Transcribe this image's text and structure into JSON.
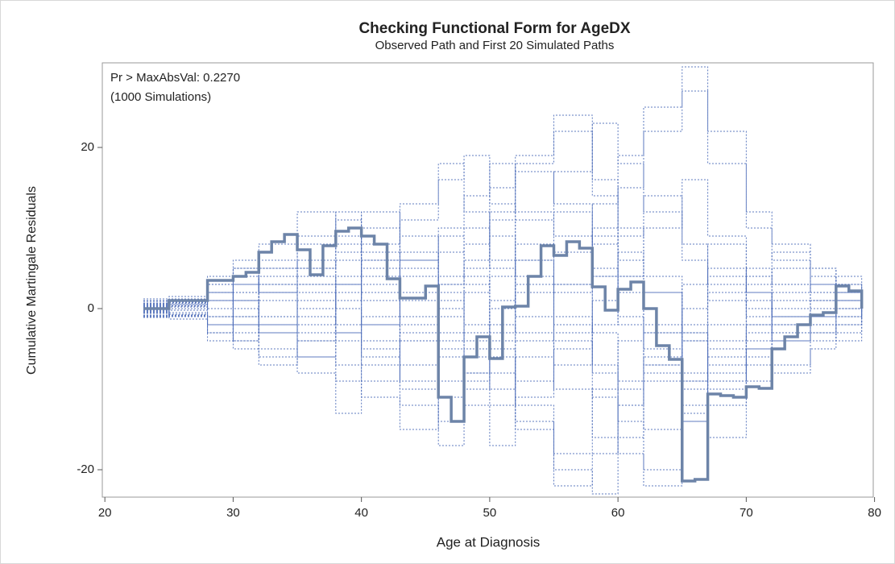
{
  "chart_data": {
    "type": "step",
    "title": "Checking Functional Form for AgeDX",
    "subtitle": "Observed Path and First 20 Simulated Paths",
    "xlabel": "Age at Diagnosis",
    "ylabel": "Cumulative Martingale Residuals",
    "annotations": [
      "Pr > MaxAbsVal: 0.2270",
      "(1000 Simulations)"
    ],
    "xlim": [
      19.8,
      79.9
    ],
    "ylim": [
      -23.4,
      30.5
    ],
    "xticks": [
      20,
      30,
      40,
      50,
      60,
      70,
      80
    ],
    "yticks": [
      -20,
      0,
      20
    ],
    "grid": false,
    "observed": {
      "color": "#6d84a8",
      "x": [
        23,
        25,
        28,
        30,
        31,
        32,
        33,
        34,
        35,
        36,
        37,
        38,
        39,
        40,
        41,
        42,
        43,
        45,
        46,
        47,
        48,
        49,
        50,
        51,
        52,
        53,
        54,
        55,
        56,
        57,
        58,
        59,
        60,
        61,
        62,
        63,
        64,
        65,
        66,
        67,
        68,
        69,
        70,
        71,
        72,
        73,
        74,
        75,
        76,
        77,
        78,
        79
      ],
      "values": [
        0,
        1,
        3.5,
        4,
        4.5,
        7,
        8.3,
        9.2,
        7.3,
        4.2,
        7.8,
        9.6,
        10,
        9,
        8,
        3.7,
        1.3,
        2.8,
        -11,
        -14,
        -6,
        -3.5,
        -6.2,
        0.2,
        0.3,
        4,
        7.8,
        6.6,
        8.3,
        7.5,
        2.7,
        -0.2,
        2.4,
        3.3,
        0,
        -4.6,
        -6.3,
        -21.4,
        -21.2,
        -10.6,
        -10.8,
        -11,
        -9.7,
        -9.9,
        -5,
        -3.5,
        -2,
        -0.8,
        -0.5,
        2.8,
        2.2,
        0
      ]
    },
    "simulated_color": "#4a6ab8",
    "simulated_x": [
      23,
      25,
      28,
      30,
      32,
      35,
      38,
      40,
      43,
      46,
      48,
      50,
      52,
      55,
      58,
      60,
      62,
      65,
      67,
      70,
      72,
      75,
      77,
      79
    ],
    "simulated": [
      [
        0.5,
        1,
        2,
        -1,
        3,
        5,
        8,
        12,
        6,
        10,
        14,
        18,
        12,
        9,
        4,
        -2,
        -8,
        -12,
        -6,
        -3,
        2,
        4,
        1,
        0
      ],
      [
        -0.5,
        -1,
        -3,
        -4,
        -2,
        -6,
        -9,
        -4,
        -10,
        -14,
        -8,
        -5,
        -12,
        -18,
        -10,
        -4,
        2,
        -3,
        -9,
        -5,
        -7,
        -3,
        -1,
        0.5
      ],
      [
        1,
        1.5,
        4,
        6,
        2,
        0,
        3,
        -2,
        2,
        7,
        3,
        -6,
        -15,
        -22,
        -18,
        -12,
        -7,
        -4,
        2,
        5,
        3,
        1,
        2,
        0
      ],
      [
        -1,
        0.5,
        1,
        3,
        5,
        9,
        12,
        7,
        4,
        -3,
        -8,
        -12,
        -6,
        2,
        9,
        15,
        22,
        27,
        18,
        10,
        6,
        3,
        4,
        1
      ],
      [
        0.3,
        -0.5,
        -2,
        1,
        4,
        2,
        -3,
        -7,
        -12,
        -17,
        -10,
        -4,
        3,
        -2,
        -8,
        -14,
        -20,
        -13,
        -5,
        -2,
        -4,
        -1,
        1,
        -0.5
      ],
      [
        -0.8,
        0.2,
        2,
        -2,
        -5,
        -8,
        -13,
        -9,
        -3,
        3,
        8,
        15,
        19,
        24,
        16,
        10,
        4,
        -3,
        -7,
        -2,
        1,
        2,
        -1,
        0
      ],
      [
        0.7,
        1.2,
        3,
        5,
        8,
        12,
        7,
        3,
        -4,
        -1,
        5,
        11,
        17,
        13,
        8,
        2,
        -5,
        -10,
        -16,
        -9,
        -4,
        -2,
        0,
        1
      ],
      [
        -0.2,
        -1.3,
        -4,
        -2,
        1,
        -3,
        2,
        6,
        11,
        16,
        19,
        13,
        6,
        -1,
        -7,
        -12,
        -6,
        0,
        5,
        2,
        -1,
        -3,
        -2,
        0
      ],
      [
        1.2,
        0.8,
        1,
        4,
        2,
        5,
        9,
        4,
        -1,
        -5,
        -9,
        -3,
        2,
        7,
        13,
        19,
        25,
        30,
        22,
        12,
        8,
        5,
        3,
        2
      ],
      [
        -1.1,
        -0.7,
        -1,
        -5,
        -7,
        -4,
        1,
        5,
        9,
        3,
        -2,
        -8,
        -14,
        -20,
        -23,
        -16,
        -9,
        -2,
        4,
        0,
        -3,
        -2,
        -4,
        -1
      ],
      [
        0.1,
        0.6,
        2,
        0,
        -3,
        1,
        4,
        10,
        7,
        2,
        -4,
        1,
        6,
        12,
        5,
        -1,
        -7,
        -14,
        -9,
        -4,
        -1,
        1,
        3,
        2
      ],
      [
        -0.4,
        -0.9,
        -3,
        -1,
        2,
        6,
        3,
        -2,
        -7,
        -11,
        -6,
        0,
        8,
        3,
        -3,
        -9,
        -15,
        -9,
        -2,
        3,
        5,
        2,
        0,
        0
      ],
      [
        0.9,
        0.4,
        3,
        2,
        6,
        4,
        0,
        -5,
        -9,
        -4,
        2,
        9,
        4,
        -4,
        -11,
        -18,
        -22,
        -14,
        -8,
        -5,
        -8,
        -5,
        -3,
        -1
      ],
      [
        -0.6,
        0.9,
        0,
        3,
        -1,
        -4,
        -7,
        -11,
        -15,
        -9,
        -3,
        4,
        11,
        17,
        23,
        18,
        12,
        6,
        1,
        4,
        7,
        5,
        2,
        1
      ],
      [
        0.4,
        -0.2,
        1,
        -3,
        -6,
        -2,
        3,
        8,
        13,
        18,
        12,
        6,
        -1,
        -7,
        -2,
        4,
        10,
        16,
        9,
        2,
        -2,
        0,
        -1,
        0
      ],
      [
        -0.9,
        0,
        -2,
        2,
        5,
        8,
        11,
        6,
        1,
        -6,
        -12,
        -17,
        -11,
        -5,
        1,
        7,
        2,
        -4,
        -10,
        -6,
        -2,
        -4,
        -2,
        0
      ],
      [
        0.6,
        1.1,
        2,
        5,
        3,
        -1,
        -4,
        -1,
        5,
        9,
        4,
        -2,
        -9,
        -3,
        4,
        9,
        14,
        8,
        3,
        -1,
        3,
        1,
        2,
        1
      ],
      [
        -0.3,
        -0.8,
        -1,
        1,
        -2,
        3,
        6,
        1,
        -4,
        0,
        6,
        12,
        18,
        22,
        14,
        6,
        -2,
        -9,
        -4,
        1,
        -1,
        -2,
        0,
        -1
      ],
      [
        0.2,
        0.3,
        -1,
        -4,
        -1,
        3,
        -2,
        -6,
        -2,
        4,
        10,
        5,
        -3,
        -10,
        -16,
        -10,
        -3,
        3,
        8,
        4,
        0,
        3,
        1,
        0
      ],
      [
        -0.1,
        0.7,
        3,
        1,
        -3,
        -6,
        -3,
        2,
        6,
        1,
        -5,
        -10,
        -4,
        3,
        10,
        4,
        -3,
        -8,
        -12,
        -7,
        -3,
        -1,
        1,
        0
      ]
    ]
  }
}
